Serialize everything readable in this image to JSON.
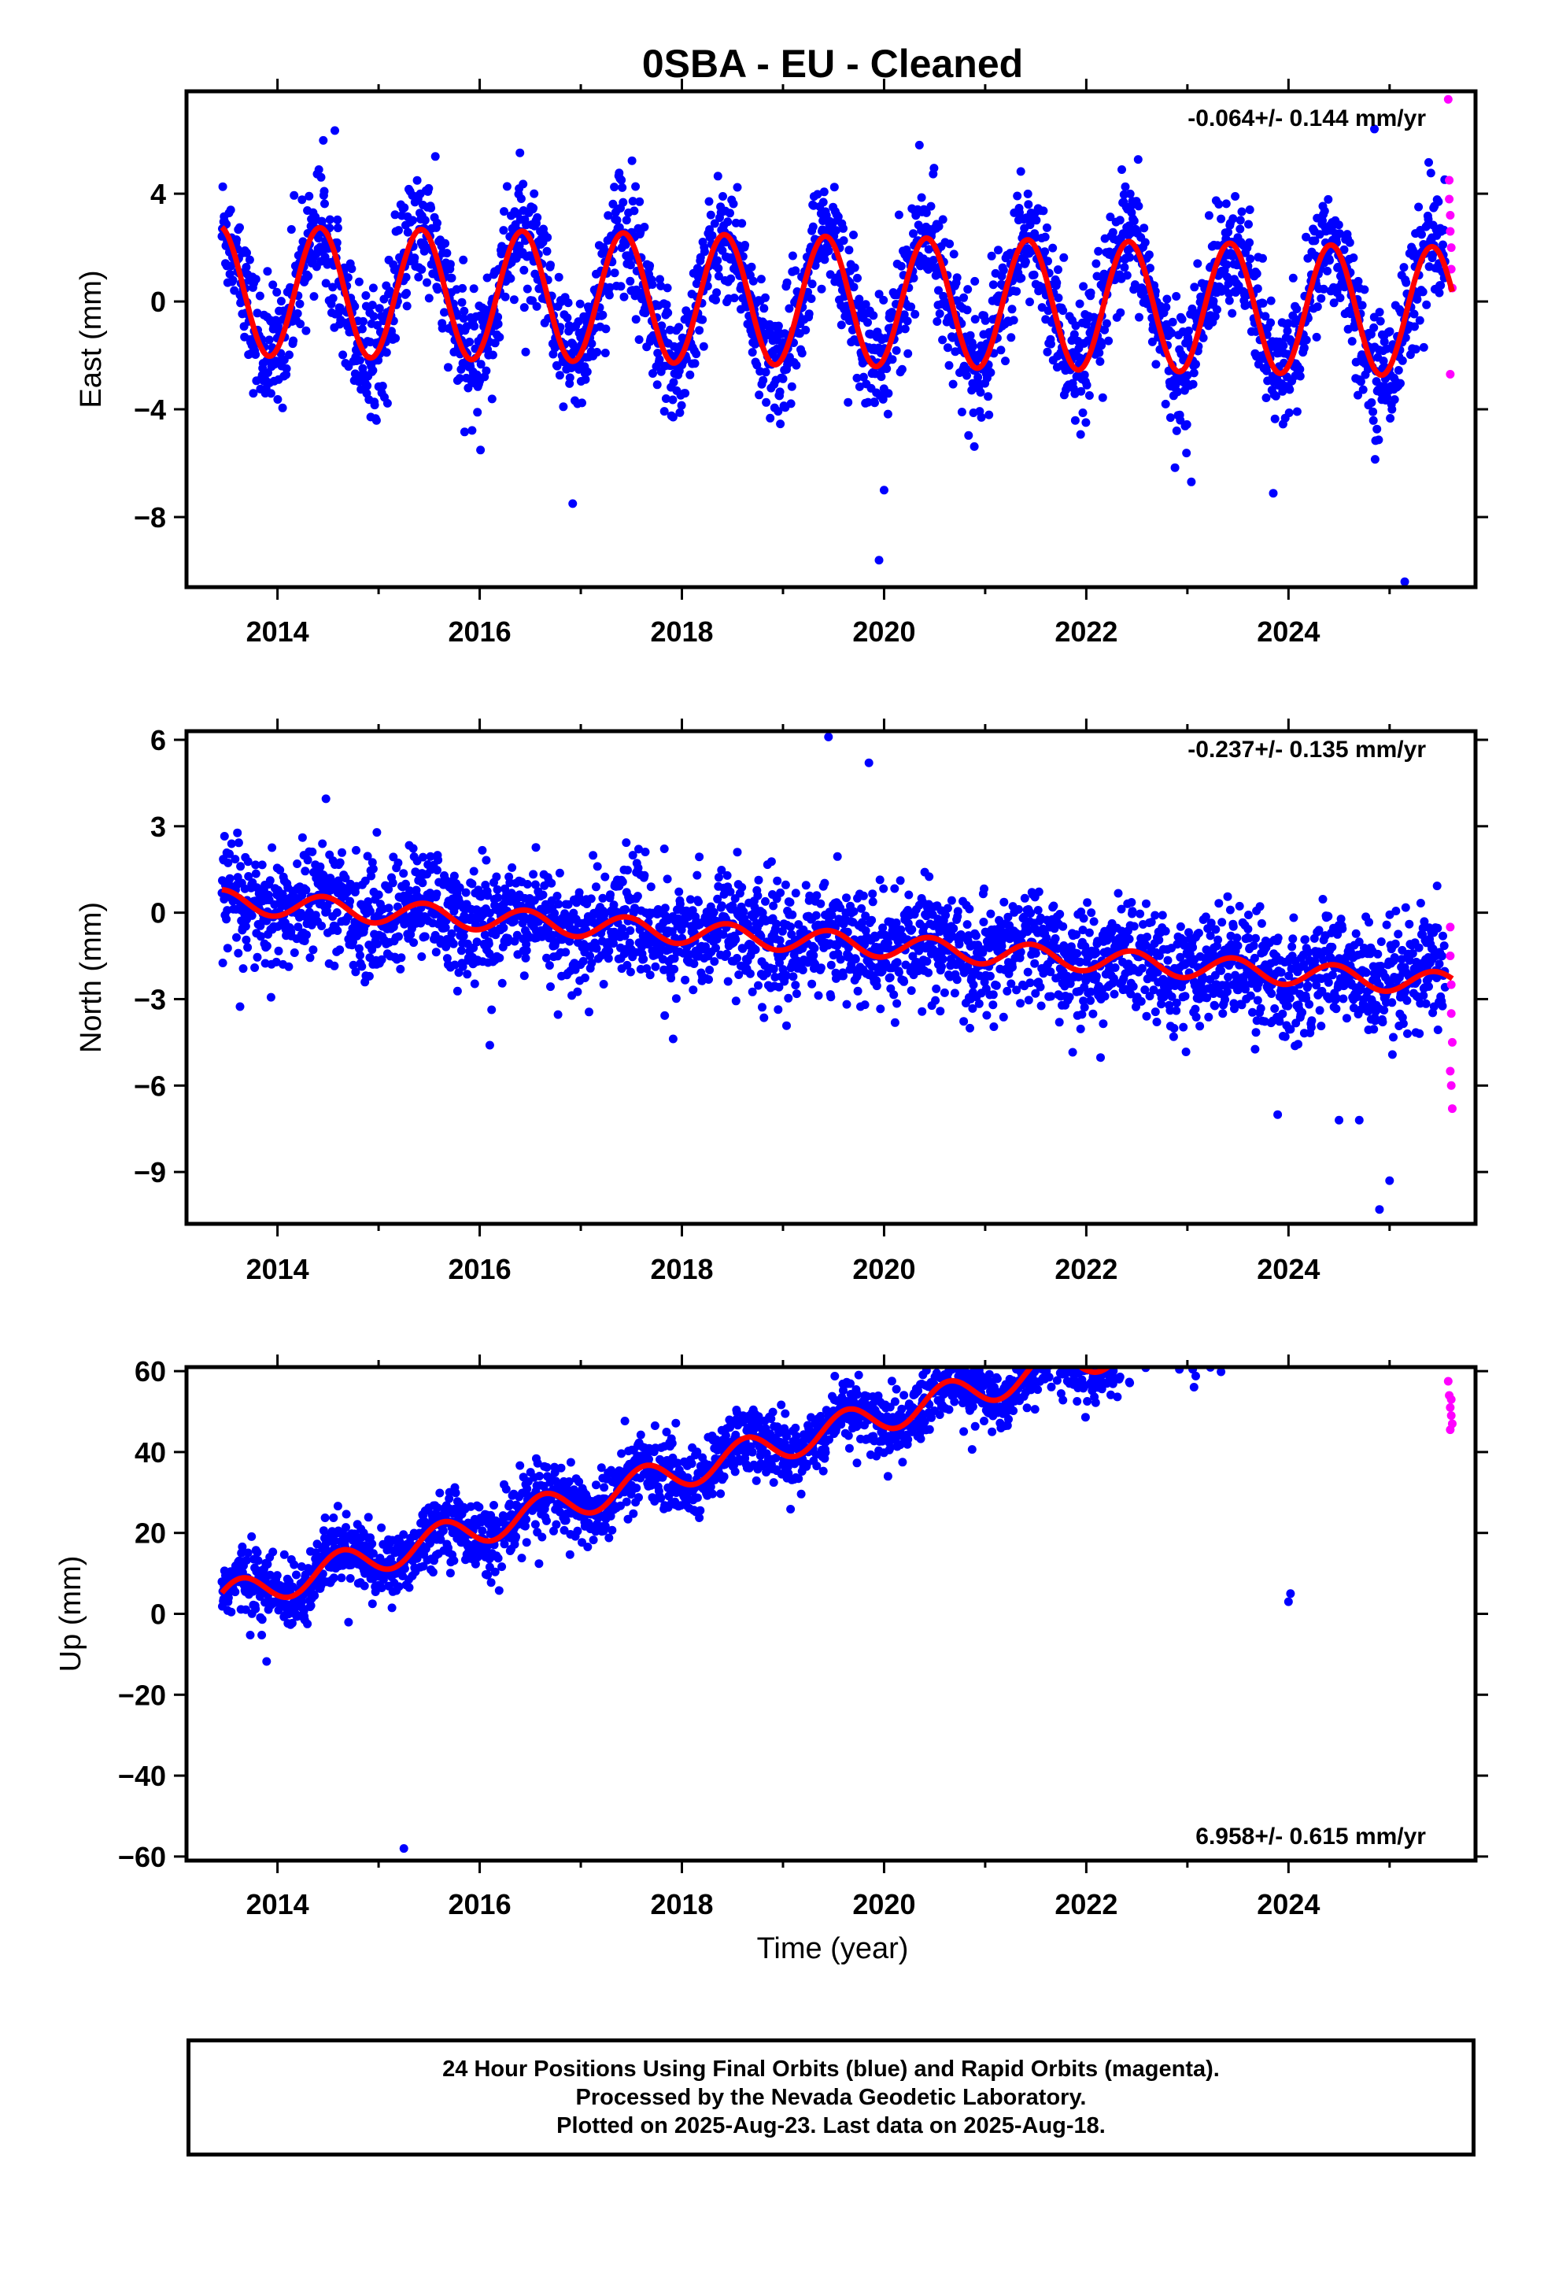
{
  "title": "0SBA  - EU - Cleaned",
  "xlabel": "Time (year)",
  "footer": {
    "line1": "24 Hour Positions Using Final Orbits (blue) and Rapid Orbits (magenta).",
    "line2": "Processed by the Nevada Geodetic Laboratory.",
    "line3": "Plotted on 2025-Aug-23. Last data on 2025-Aug-18."
  },
  "colors": {
    "final_orbits": "#0000ff",
    "rapid_orbits": "#ff00ff",
    "model_fit": "#ff0000"
  },
  "chart_data": [
    {
      "type": "scatter",
      "ylabel": "East (mm)",
      "rate_label": "-0.064+/- 0.144 mm/yr",
      "xlim": [
        2013.1,
        2025.85
      ],
      "ylim": [
        -10.6,
        7.8
      ],
      "xticks": [
        2014,
        2016,
        2018,
        2020,
        2022,
        2024
      ],
      "yticks": [
        -8,
        -4,
        0,
        4
      ],
      "series": [
        {
          "role": "final-orbits",
          "x_range": [
            2013.45,
            2025.55
          ],
          "trend_mm_per_yr": -0.064,
          "offset": 0.4,
          "seasonal_amplitude": 2.4,
          "peak_phase_year": 0.42,
          "scatter_sd": 1.1
        },
        {
          "role": "rapid-orbits",
          "points": [
            [
              2025.58,
              7.5
            ],
            [
              2025.59,
              4.5
            ],
            [
              2025.59,
              3.8
            ],
            [
              2025.6,
              3.2
            ],
            [
              2025.6,
              2.6
            ],
            [
              2025.61,
              2.0
            ],
            [
              2025.61,
              1.2
            ],
            [
              2025.62,
              0.5
            ],
            [
              2025.6,
              -2.7
            ]
          ]
        },
        {
          "role": "model-fit",
          "x_range": [
            2013.45,
            2025.62
          ],
          "trend_mm_per_yr": -0.064,
          "offset": 0.4,
          "seasonal_amplitude": 2.4,
          "peak_phase_year": 0.42
        }
      ],
      "outliers": [
        [
          2016.92,
          -7.5
        ],
        [
          2019.95,
          -9.6
        ],
        [
          2025.15,
          -10.4
        ],
        [
          2024.85,
          6.4
        ],
        [
          2020.0,
          -7.0
        ]
      ]
    },
    {
      "type": "scatter",
      "ylabel": "North (mm)",
      "rate_label": "-0.237+/- 0.135 mm/yr",
      "xlim": [
        2013.1,
        2025.85
      ],
      "ylim": [
        -10.8,
        6.3
      ],
      "xticks": [
        2014,
        2016,
        2018,
        2020,
        2022,
        2024
      ],
      "yticks": [
        -9,
        -6,
        -3,
        0,
        3,
        6
      ],
      "series": [
        {
          "role": "final-orbits",
          "x_range": [
            2013.45,
            2025.55
          ],
          "trend_mm_per_yr": -0.237,
          "offset": 0.4,
          "seasonal_amplitude": 0.4,
          "peak_phase_year": 0.45,
          "scatter_sd": 0.95
        },
        {
          "role": "rapid-orbits",
          "points": [
            [
              2025.6,
              -0.5
            ],
            [
              2025.6,
              -1.5
            ],
            [
              2025.61,
              -2.5
            ],
            [
              2025.61,
              -3.5
            ],
            [
              2025.62,
              -4.5
            ],
            [
              2025.6,
              -5.5
            ],
            [
              2025.61,
              -6.0
            ],
            [
              2025.62,
              -6.8
            ]
          ]
        },
        {
          "role": "model-fit",
          "x_range": [
            2013.45,
            2025.62
          ],
          "trend_mm_per_yr": -0.237,
          "offset": 0.4,
          "seasonal_amplitude": 0.4,
          "peak_phase_year": 0.45
        }
      ],
      "outliers": [
        [
          2024.9,
          -10.3
        ],
        [
          2025.0,
          -9.3
        ],
        [
          2024.7,
          -7.2
        ],
        [
          2024.5,
          -7.2
        ],
        [
          2019.45,
          6.1
        ],
        [
          2019.85,
          5.2
        ],
        [
          2016.1,
          -4.6
        ]
      ]
    },
    {
      "type": "scatter",
      "ylabel": "Up (mm)",
      "rate_label": "6.958+/- 0.615 mm/yr",
      "xlim": [
        2013.1,
        2025.85
      ],
      "ylim": [
        -61,
        61
      ],
      "xticks": [
        2014,
        2016,
        2018,
        2020,
        2022,
        2024
      ],
      "yticks": [
        -60,
        -40,
        -20,
        0,
        20,
        40,
        60
      ],
      "series": [
        {
          "role": "final-orbits",
          "x_range": [
            2013.45,
            2025.55
          ],
          "trend_mm_per_yr": 6.958,
          "offset": 3.5,
          "seasonal_amplitude": 4.0,
          "peak_phase_year": 0.63,
          "scatter_sd": 4.2
        },
        {
          "role": "rapid-orbits",
          "points": [
            [
              2025.58,
              57.5
            ],
            [
              2025.59,
              54.0
            ],
            [
              2025.6,
              51.0
            ],
            [
              2025.61,
              49.0
            ],
            [
              2025.62,
              47.0
            ],
            [
              2025.6,
              45.5
            ],
            [
              2025.61,
              53.0
            ]
          ]
        },
        {
          "role": "model-fit",
          "x_range": [
            2013.45,
            2025.62
          ],
          "trend_mm_per_yr": 6.958,
          "offset": 3.5,
          "seasonal_amplitude": 4.0,
          "peak_phase_year": 0.63
        }
      ],
      "outliers": [
        [
          2015.25,
          -58.0
        ],
        [
          2024.0,
          3.0
        ],
        [
          2024.02,
          5.0
        ]
      ]
    }
  ]
}
